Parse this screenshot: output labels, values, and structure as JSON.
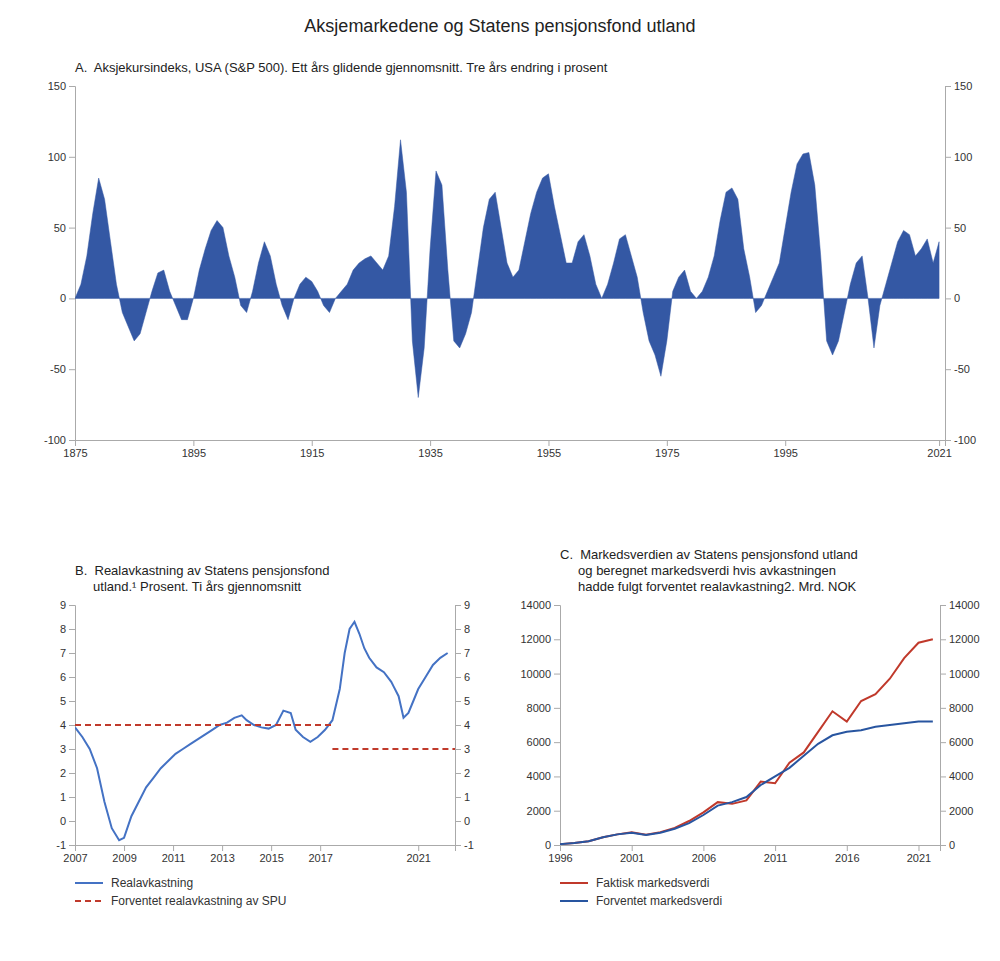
{
  "title": "Aksjemarkedene og Statens pensjonsfond utland",
  "chart_data": [
    {
      "type": "area",
      "title": "A.  Aksjekursindeks, USA (S&P 500). Ett års glidende gjennomsnitt. Tre års endring i prosent",
      "color": "#3458a4",
      "x": [
        1875,
        1876,
        1877,
        1878,
        1879,
        1880,
        1881,
        1882,
        1883,
        1884,
        1885,
        1886,
        1887,
        1888,
        1889,
        1890,
        1891,
        1892,
        1893,
        1894,
        1895,
        1896,
        1897,
        1898,
        1899,
        1900,
        1901,
        1902,
        1903,
        1904,
        1905,
        1906,
        1907,
        1908,
        1909,
        1910,
        1911,
        1912,
        1913,
        1914,
        1915,
        1916,
        1917,
        1918,
        1919,
        1920,
        1921,
        1922,
        1923,
        1924,
        1925,
        1926,
        1927,
        1928,
        1929,
        1930,
        1931,
        1932,
        1933,
        1934,
        1935,
        1936,
        1937,
        1938,
        1939,
        1940,
        1941,
        1942,
        1943,
        1944,
        1945,
        1946,
        1947,
        1948,
        1949,
        1950,
        1951,
        1952,
        1953,
        1954,
        1955,
        1956,
        1957,
        1958,
        1959,
        1960,
        1961,
        1962,
        1963,
        1964,
        1965,
        1966,
        1967,
        1968,
        1969,
        1970,
        1971,
        1972,
        1973,
        1974,
        1975,
        1976,
        1977,
        1978,
        1979,
        1980,
        1981,
        1982,
        1983,
        1984,
        1985,
        1986,
        1987,
        1988,
        1989,
        1990,
        1991,
        1992,
        1993,
        1994,
        1995,
        1996,
        1997,
        1998,
        1999,
        2000,
        2001,
        2002,
        2003,
        2004,
        2005,
        2006,
        2007,
        2008,
        2009,
        2010,
        2011,
        2012,
        2013,
        2014,
        2015,
        2016,
        2017,
        2018,
        2019,
        2020,
        2021
      ],
      "values": [
        0,
        10,
        30,
        60,
        85,
        70,
        40,
        10,
        -10,
        -20,
        -30,
        -25,
        -10,
        5,
        18,
        20,
        5,
        -5,
        -15,
        -15,
        0,
        20,
        35,
        48,
        55,
        50,
        30,
        15,
        -5,
        -10,
        5,
        25,
        40,
        30,
        10,
        -5,
        -15,
        0,
        10,
        15,
        12,
        5,
        -5,
        -10,
        0,
        5,
        10,
        20,
        25,
        28,
        30,
        25,
        20,
        30,
        65,
        112,
        75,
        -30,
        -70,
        -35,
        35,
        90,
        80,
        20,
        -30,
        -35,
        -25,
        -10,
        20,
        50,
        70,
        75,
        50,
        25,
        15,
        20,
        40,
        60,
        75,
        85,
        88,
        65,
        45,
        25,
        25,
        40,
        45,
        30,
        10,
        0,
        10,
        25,
        42,
        45,
        30,
        15,
        -10,
        -30,
        -40,
        -55,
        -30,
        5,
        15,
        20,
        5,
        0,
        5,
        15,
        30,
        55,
        75,
        78,
        70,
        35,
        15,
        -10,
        -5,
        5,
        15,
        25,
        50,
        75,
        95,
        102,
        103,
        80,
        30,
        -30,
        -40,
        -30,
        -10,
        10,
        25,
        30,
        0,
        -35,
        -5,
        10,
        25,
        40,
        48,
        45,
        30,
        35,
        42,
        25,
        40
      ],
      "xlim": [
        1875,
        2022
      ],
      "xticks": [
        1875,
        1895,
        1915,
        1935,
        1955,
        1975,
        1995,
        2021
      ],
      "ylim": [
        -100,
        150
      ],
      "yticks": [
        -100,
        -50,
        0,
        50,
        100,
        150
      ],
      "y2lim": [
        -100,
        150
      ],
      "y2ticks": [
        -100,
        -50,
        0,
        50,
        100,
        150
      ],
      "grid": false
    },
    {
      "type": "line",
      "title": "B.  Realavkastning av Statens pensjonsfond\n     utland.¹ Prosent. Ti års gjennomsnitt",
      "series": [
        {
          "name": "Realavkastning",
          "color": "#4472c4",
          "line_style": "solid",
          "x": [
            2007.0,
            2007.3,
            2007.6,
            2007.9,
            2008.2,
            2008.5,
            2008.8,
            2009.0,
            2009.3,
            2009.6,
            2009.9,
            2010.2,
            2010.5,
            2010.8,
            2011.1,
            2011.4,
            2011.7,
            2012.0,
            2012.3,
            2012.6,
            2012.9,
            2013.2,
            2013.5,
            2013.8,
            2014.0,
            2014.3,
            2014.6,
            2014.9,
            2015.2,
            2015.5,
            2015.8,
            2016.0,
            2016.3,
            2016.6,
            2016.9,
            2017.2,
            2017.5,
            2017.8,
            2018.0,
            2018.2,
            2018.4,
            2018.6,
            2018.8,
            2019.0,
            2019.3,
            2019.6,
            2019.9,
            2020.0,
            2020.2,
            2020.4,
            2020.6,
            2020.8,
            2021.0,
            2021.3,
            2021.6,
            2021.9,
            2022.2
          ],
          "values": [
            3.9,
            3.5,
            3.0,
            2.2,
            0.8,
            -0.3,
            -0.8,
            -0.7,
            0.2,
            0.8,
            1.4,
            1.8,
            2.2,
            2.5,
            2.8,
            3.0,
            3.2,
            3.4,
            3.6,
            3.8,
            4.0,
            4.1,
            4.3,
            4.4,
            4.2,
            4.0,
            3.9,
            3.85,
            4.0,
            4.6,
            4.5,
            3.8,
            3.5,
            3.3,
            3.5,
            3.8,
            4.2,
            5.5,
            7.0,
            8.0,
            8.3,
            7.8,
            7.2,
            6.8,
            6.4,
            6.2,
            5.8,
            5.6,
            5.2,
            4.3,
            4.5,
            5.0,
            5.5,
            6.0,
            6.5,
            6.8,
            7.0
          ]
        },
        {
          "name": "Forventet realavkastning av SPU",
          "color": "#c0392b",
          "line_style": "dashed",
          "x": [
            2007,
            2017.5,
            null,
            2017.5,
            2022.5
          ],
          "values": [
            4.0,
            4.0,
            null,
            3.0,
            3.0
          ]
        }
      ],
      "xlim": [
        2007,
        2022.5
      ],
      "xticks": [
        2007,
        2009,
        2011,
        2013,
        2015,
        2017,
        2021
      ],
      "ylim": [
        -1,
        9
      ],
      "yticks": [
        -1,
        0,
        1,
        2,
        3,
        4,
        5,
        6,
        7,
        8,
        9
      ],
      "y2lim": [
        -1,
        9
      ],
      "y2ticks": [
        -1,
        0,
        1,
        2,
        3,
        4,
        5,
        6,
        7,
        8,
        9
      ],
      "legend": "below",
      "grid": false
    },
    {
      "type": "line",
      "title": "C.  Markedsverdien av Statens pensjonsfond utland\n     og beregnet markedsverdi hvis avkastningen\n     hadde fulgt forventet realavkastning2. Mrd. NOK",
      "x": [
        1996,
        1997,
        1998,
        1999,
        2000,
        2001,
        2002,
        2003,
        2004,
        2005,
        2006,
        2007,
        2008,
        2009,
        2010,
        2011,
        2012,
        2013,
        2014,
        2015,
        2016,
        2017,
        2018,
        2019,
        2020,
        2021,
        2022
      ],
      "series": [
        {
          "name": "Faktisk markedsverdi",
          "color": "#c0392b",
          "line_style": "solid",
          "values": [
            50,
            120,
            220,
            450,
            620,
            750,
            600,
            750,
            1000,
            1400,
            1900,
            2500,
            2400,
            2600,
            3700,
            3600,
            4800,
            5400,
            6600,
            7800,
            7200,
            8400,
            8800,
            9700,
            10900,
            11800,
            12000
          ]
        },
        {
          "name": "Forventet markedsverdi",
          "color": "#2855a0",
          "line_style": "solid",
          "values": [
            50,
            120,
            220,
            450,
            620,
            720,
            580,
            720,
            950,
            1280,
            1750,
            2300,
            2500,
            2800,
            3500,
            4000,
            4500,
            5200,
            5900,
            6400,
            6600,
            6700,
            6900,
            7000,
            7100,
            7200,
            7200
          ]
        }
      ],
      "xlim": [
        1996,
        2022.5
      ],
      "xticks": [
        1996,
        2001,
        2006,
        2011,
        2016,
        2021
      ],
      "ylim": [
        0,
        14000
      ],
      "yticks": [
        0,
        2000,
        4000,
        6000,
        8000,
        10000,
        12000,
        14000
      ],
      "y2lim": [
        0,
        14000
      ],
      "y2ticks": [
        0,
        2000,
        4000,
        6000,
        8000,
        10000,
        12000,
        14000
      ],
      "legend": "below",
      "grid": false
    }
  ]
}
